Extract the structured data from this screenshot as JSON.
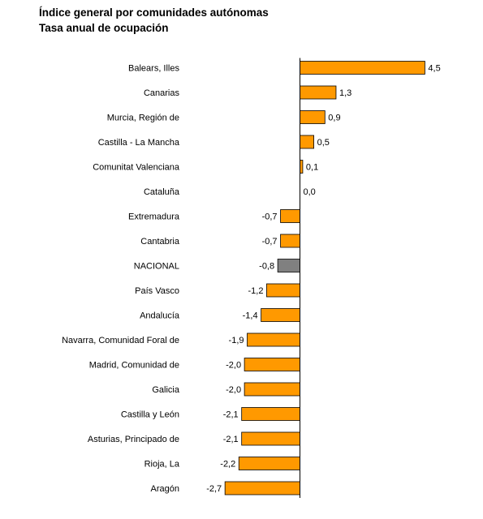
{
  "chart_data": {
    "type": "bar",
    "orientation": "horizontal",
    "title": "Índice general por comunidades autónomas",
    "subtitle": "Tasa anual de ocupación",
    "xlabel": "",
    "ylabel": "",
    "categories": [
      "Balears, Illes",
      "Canarias",
      "Murcia, Región de",
      "Castilla - La Mancha",
      "Comunitat Valenciana",
      "Cataluña",
      "Extremadura",
      "Cantabria",
      "NACIONAL",
      "País Vasco",
      "Andalucía",
      "Navarra, Comunidad Foral de",
      "Madrid, Comunidad de",
      "Galicia",
      "Castilla y León",
      "Asturias, Principado de",
      "Rioja, La",
      "Aragón"
    ],
    "values": [
      4.5,
      1.3,
      0.9,
      0.5,
      0.1,
      0.0,
      -0.7,
      -0.7,
      -0.8,
      -1.2,
      -1.4,
      -1.9,
      -2.0,
      -2.0,
      -2.1,
      -2.1,
      -2.2,
      -2.7
    ],
    "value_labels": [
      "4,5",
      "1,3",
      "0,9",
      "0,5",
      "0,1",
      "0,0",
      "-0,7",
      "-0,7",
      "-0,8",
      "-1,2",
      "-1,4",
      "-1,9",
      "-2,0",
      "-2,0",
      "-2,1",
      "-2,1",
      "-2,2",
      "-2,7"
    ],
    "highlight_category": "NACIONAL",
    "colors": {
      "bar": "#FF9900",
      "highlight": "#808080",
      "border": "#000000",
      "axis": "#000000"
    },
    "grid": false,
    "legend": "none"
  }
}
